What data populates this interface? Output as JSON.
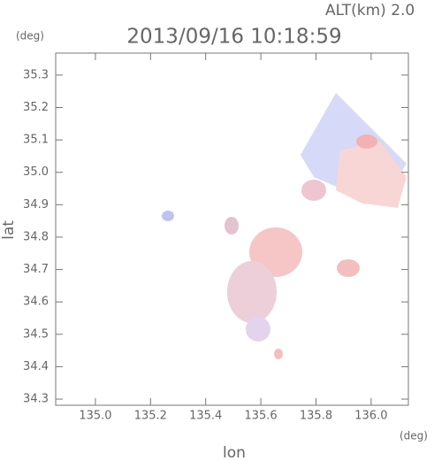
{
  "chart_data": {
    "type": "map",
    "title": "2013/09/16 10:18:59",
    "subtitle": "ALT(km) 2.0",
    "xlabel": "lon",
    "ylabel": "lat",
    "xunit": "(deg)",
    "yunit": "(deg)",
    "xlim": [
      134.856,
      136.135
    ],
    "ylim": [
      34.281,
      35.368
    ],
    "xticks": [
      {
        "value": 135,
        "label": "135.0"
      },
      135.2,
      135.4,
      135.6,
      135.8,
      {
        "value": 136,
        "label": "136.0"
      }
    ],
    "yticks": [
      34.3,
      34.4,
      34.5,
      34.6,
      34.7,
      34.8,
      34.9,
      {
        "value": 35,
        "label": "35.0"
      },
      35.1,
      35.2,
      35.3
    ]
  }
}
